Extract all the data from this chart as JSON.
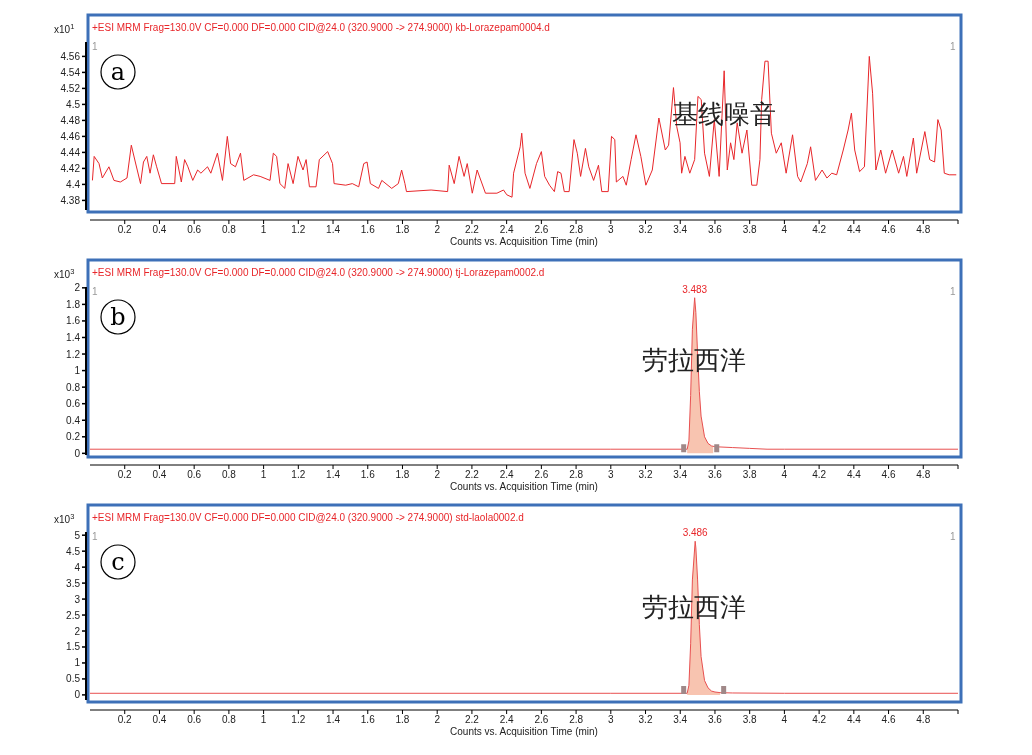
{
  "chart_data": [
    {
      "type": "line",
      "title": "+ESI MRM Frag=130.0V CF=0.000 DF=0.000 CID@24.0 (320.9000 -> 274.9000) kb-Lorazepam0004.d",
      "ylabel": "x10$^{1}$",
      "xlabel": "Counts vs. Acquisition Time (min)",
      "xlim": [
        0,
        5
      ],
      "xticks": [
        0.2,
        0.4,
        0.6,
        0.8,
        1,
        1.2,
        1.4,
        1.6,
        1.8,
        2,
        2.2,
        2.4,
        2.6,
        2.8,
        3,
        3.2,
        3.4,
        3.6,
        3.8,
        4,
        4.2,
        4.4,
        4.6,
        4.8
      ],
      "ylim": [
        4.368,
        4.578
      ],
      "yticks": [
        4.38,
        4.4,
        4.42,
        4.44,
        4.46,
        4.48,
        4.5,
        4.52,
        4.54,
        4.56
      ],
      "series": [
        {
          "type": "line",
          "color": "#e8262a",
          "x": [
            0.014,
            0.024,
            0.052,
            0.071,
            0.109,
            0.138,
            0.175,
            0.213,
            0.238,
            0.261,
            0.291,
            0.308,
            0.327,
            0.346,
            0.365,
            0.384,
            0.412,
            0.488,
            0.497,
            0.526,
            0.545,
            0.564,
            0.592,
            0.62,
            0.639,
            0.677,
            0.696,
            0.734,
            0.763,
            0.791,
            0.81,
            0.838,
            0.867,
            0.886,
            0.942,
            0.98,
            1.037,
            1.056,
            1.075,
            1.094,
            1.122,
            1.141,
            1.17,
            1.198,
            1.227,
            1.245,
            1.264,
            1.302,
            1.321,
            1.369,
            1.397,
            1.406,
            1.473,
            1.511,
            1.548,
            1.577,
            1.596,
            1.615,
            1.662,
            1.681,
            1.738,
            1.776,
            1.795,
            1.814,
            1.823,
            1.965,
            2.06,
            2.069,
            2.098,
            2.126,
            2.155,
            2.173,
            2.202,
            2.23,
            2.278,
            2.344,
            2.382,
            2.401,
            2.431,
            2.44,
            2.478,
            2.487,
            2.506,
            2.534,
            2.572,
            2.6,
            2.619,
            2.647,
            2.675,
            2.694,
            2.713,
            2.732,
            2.76,
            2.788,
            2.807,
            2.826,
            2.854,
            2.873,
            2.901,
            2.929,
            2.948,
            2.985,
            3.004,
            3.023,
            3.032,
            3.07,
            3.089,
            3.117,
            3.145,
            3.173,
            3.202,
            3.239,
            3.277,
            3.314,
            3.333,
            3.361,
            3.38,
            3.399,
            3.408,
            3.427,
            3.455,
            3.483,
            3.502,
            3.521,
            3.54,
            3.568,
            3.596,
            3.624,
            3.653,
            3.671,
            3.69,
            3.709,
            3.728,
            3.756,
            3.784,
            3.812,
            3.841,
            3.859,
            3.869,
            3.888,
            3.906,
            3.925,
            3.953,
            3.982,
            4.01,
            4.047,
            4.076,
            4.094,
            4.132,
            4.151,
            4.179,
            4.217,
            4.245,
            4.273,
            4.301,
            4.339,
            4.367,
            4.386,
            4.405,
            4.433,
            4.461,
            4.489,
            4.508,
            4.527,
            4.555,
            4.583,
            4.621,
            4.658,
            4.686,
            4.705,
            4.743,
            4.762,
            4.809,
            4.837,
            4.865,
            4.884,
            4.903,
            4.921,
            4.949,
            4.99
          ],
          "values": [
            4.405,
            4.435,
            4.426,
            4.408,
            4.422,
            4.405,
            4.403,
            4.408,
            4.449,
            4.428,
            4.401,
            4.428,
            4.435,
            4.414,
            4.437,
            4.422,
            4.401,
            4.401,
            4.435,
            4.403,
            4.431,
            4.422,
            4.405,
            4.418,
            4.414,
            4.422,
            4.414,
            4.439,
            4.405,
            4.46,
            4.426,
            4.422,
            4.439,
            4.405,
            4.412,
            4.41,
            4.405,
            4.439,
            4.435,
            4.401,
            4.395,
            4.426,
            4.401,
            4.435,
            4.418,
            4.431,
            4.397,
            4.397,
            4.431,
            4.441,
            4.426,
            4.401,
            4.399,
            4.401,
            4.397,
            4.426,
            4.428,
            4.401,
            4.395,
            4.405,
            4.395,
            4.401,
            4.418,
            4.401,
            4.391,
            4.393,
            4.391,
            4.424,
            4.401,
            4.435,
            4.41,
            4.426,
            4.389,
            4.418,
            4.389,
            4.389,
            4.393,
            4.387,
            4.384,
            4.414,
            4.447,
            4.464,
            4.414,
            4.395,
            4.426,
            4.441,
            4.41,
            4.399,
            4.391,
            4.416,
            4.414,
            4.391,
            4.391,
            4.456,
            4.439,
            4.41,
            4.445,
            4.422,
            4.405,
            4.424,
            4.391,
            4.391,
            4.46,
            4.456,
            4.403,
            4.41,
            4.399,
            4.431,
            4.462,
            4.435,
            4.399,
            4.418,
            4.483,
            4.443,
            4.449,
            4.521,
            4.472,
            4.452,
            4.414,
            4.435,
            4.414,
            4.431,
            4.51,
            4.506,
            4.439,
            4.41,
            4.481,
            4.41,
            4.542,
            4.418,
            4.452,
            4.431,
            4.477,
            4.439,
            4.468,
            4.399,
            4.399,
            4.431,
            4.506,
            4.554,
            4.554,
            4.464,
            4.439,
            4.452,
            4.414,
            4.462,
            4.41,
            4.403,
            4.426,
            4.447,
            4.405,
            4.418,
            4.408,
            4.414,
            4.412,
            4.443,
            4.468,
            4.489,
            4.443,
            4.416,
            4.422,
            4.56,
            4.514,
            4.418,
            4.443,
            4.414,
            4.443,
            4.414,
            4.435,
            4.41,
            4.458,
            4.414,
            4.466,
            4.431,
            4.428,
            4.481,
            4.468,
            4.414,
            4.412,
            4.412
          ]
        }
      ],
      "annotations": [
        "a",
        "1",
        "1",
        {
          "text": "基线噪音",
          "x": 3.65,
          "y": 4.485
        }
      ]
    },
    {
      "type": "line",
      "title": "+ESI MRM Frag=130.0V CF=0.000 DF=0.000 CID@24.0 (320.9000 -> 274.9000) tj-Lorazepam0002.d",
      "ylabel": "x10$^{3}$",
      "xlabel": "Counts vs. Acquisition Time (min)",
      "xlim": [
        0,
        5
      ],
      "xticks": [
        0.2,
        0.4,
        0.6,
        0.8,
        1,
        1.2,
        1.4,
        1.6,
        1.8,
        2,
        2.2,
        2.4,
        2.6,
        2.8,
        3,
        3.2,
        3.4,
        3.6,
        3.8,
        4,
        4.2,
        4.4,
        4.6,
        4.8
      ],
      "ylim": [
        -0.02,
        2.01
      ],
      "yticks": [
        0,
        0.2,
        0.4,
        0.6,
        0.8,
        1,
        1.2,
        1.4,
        1.6,
        1.8,
        2
      ],
      "series": [
        {
          "type": "area",
          "color": "#f8c4b0",
          "x": [
            3.44,
            3.45,
            3.46,
            3.47,
            3.483,
            3.49,
            3.5,
            3.51,
            3.52,
            3.54,
            3.56,
            3.58,
            3.59
          ],
          "values": [
            0.05,
            0.15,
            0.7,
            1.5,
            1.88,
            1.7,
            1.2,
            0.75,
            0.45,
            0.2,
            0.12,
            0.09,
            0.08
          ]
        },
        {
          "type": "line",
          "color": "#e85050",
          "x": [
            0,
            3,
            3.44,
            3.45,
            3.46,
            3.47,
            3.483,
            3.49,
            3.5,
            3.51,
            3.52,
            3.54,
            3.56,
            3.58,
            3.6,
            3.7,
            3.8,
            3.9,
            4,
            5
          ],
          "values": [
            0.05,
            0.05,
            0.05,
            0.15,
            0.7,
            1.5,
            1.88,
            1.7,
            1.2,
            0.75,
            0.45,
            0.2,
            0.12,
            0.09,
            0.08,
            0.07,
            0.06,
            0.05,
            0.05,
            0.05
          ]
        }
      ],
      "annotations": [
        "b",
        "1",
        "1",
        {
          "text": "3.483",
          "x": 3.483,
          "y": 1.88
        },
        {
          "text": "劳拉西洋",
          "x": 3.48,
          "y": 1.1
        }
      ]
    },
    {
      "type": "line",
      "title": "+ESI MRM Frag=130.0V CF=0.000 DF=0.000 CID@24.0 (320.9000 -> 274.9000) std-laola0002.d",
      "ylabel": "x10$^{3}$",
      "xlabel": "Counts vs. Acquisition Time (min)",
      "xlim": [
        0,
        5
      ],
      "xticks": [
        0.2,
        0.4,
        0.6,
        0.8,
        1,
        1.2,
        1.4,
        1.6,
        1.8,
        2,
        2.2,
        2.4,
        2.6,
        2.8,
        3,
        3.2,
        3.4,
        3.6,
        3.8,
        4,
        4.2,
        4.4,
        4.6,
        4.8
      ],
      "ylim": [
        -0.16,
        5.1
      ],
      "yticks": [
        0,
        0.5,
        1,
        1.5,
        2,
        2.5,
        3,
        3.5,
        4,
        4.5,
        5
      ],
      "series": [
        {
          "type": "area",
          "color": "#f8c4b0",
          "x": [
            3.44,
            3.45,
            3.46,
            3.47,
            3.486,
            3.49,
            3.5,
            3.51,
            3.52,
            3.54,
            3.56,
            3.58,
            3.6,
            3.63
          ],
          "values": [
            0.05,
            0.3,
            1.6,
            3.6,
            4.81,
            4.6,
            3.6,
            2.2,
            1.2,
            0.45,
            0.22,
            0.12,
            0.09,
            0.07
          ]
        },
        {
          "type": "line",
          "color": "#e85050",
          "x": [
            0,
            3,
            3.44,
            3.45,
            3.46,
            3.47,
            3.486,
            3.49,
            3.5,
            3.51,
            3.52,
            3.54,
            3.56,
            3.58,
            3.6,
            3.63,
            3.7,
            4,
            5
          ],
          "values": [
            0.05,
            0.05,
            0.05,
            0.3,
            1.6,
            3.6,
            4.81,
            4.6,
            3.6,
            2.2,
            1.2,
            0.45,
            0.22,
            0.12,
            0.09,
            0.07,
            0.06,
            0.05,
            0.05
          ]
        }
      ],
      "annotations": [
        "c",
        "1",
        "1",
        {
          "text": "3.486",
          "x": 3.486,
          "y": 4.81
        },
        {
          "text": "劳拉西洋",
          "x": 3.48,
          "y": 2.7
        }
      ]
    }
  ]
}
